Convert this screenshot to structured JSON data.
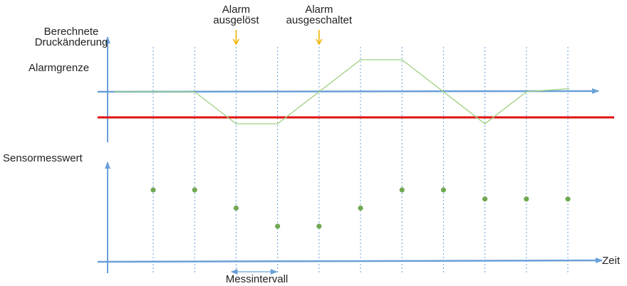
{
  "labels": {
    "upper_y_axis": [
      "Berechnete",
      "Druckänderung"
    ],
    "alarm_limit": "Alarmgrenze",
    "alarm_triggered": [
      "Alarm",
      "ausgelöst"
    ],
    "alarm_off": [
      "Alarm",
      "ausgeschaltet"
    ],
    "lower_y_axis": "Sensormesswert",
    "x_axis": "Zeit",
    "interval": "Messintervall"
  },
  "colors": {
    "axis": "#6aa0d8",
    "gridline": "#6aa0d8",
    "alarm_limit_line": "#e01010",
    "curve": "#9fd080",
    "points": "#6fa850",
    "markers": "#f0b400",
    "text": "#222222"
  },
  "chart_data": {
    "type": "diagram",
    "time_steps": [
      1,
      2,
      3,
      4,
      5,
      6,
      7,
      8,
      9,
      10,
      11
    ],
    "sensor_readings": [
      4,
      4,
      3,
      2,
      2,
      3,
      4,
      4,
      3.5,
      3.5,
      3.5
    ],
    "pressure_change": [
      0,
      0,
      -1,
      -1,
      0,
      1,
      1,
      0,
      -1,
      0,
      0.1
    ],
    "alarm_limit": -0.75,
    "alarm_triggered_at": 3,
    "alarm_off_at": 5,
    "measurement_interval": [
      3,
      4
    ]
  }
}
